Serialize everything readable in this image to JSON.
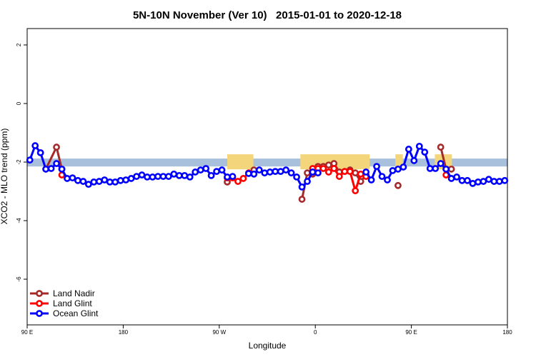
{
  "chart_data": {
    "type": "line",
    "title": "5N-10N November (Ver 10)   2015-01-01 to 2020-12-18",
    "x_label": "Longitude",
    "y_label": "XCO2 - MLO trend (ppm)",
    "xlim": [
      90,
      540
    ],
    "ylim": [
      -7.56,
      2.56
    ],
    "xticks": [
      {
        "value": 90,
        "label": "90 E"
      },
      180,
      {
        "value": 270,
        "label": "90 W"
      },
      {
        "value": 360,
        "label": "0"
      },
      {
        "value": 450,
        "label": "90 E"
      },
      {
        "value": 540,
        "label": "180"
      }
    ],
    "yticks": [
      -6,
      -4,
      -2,
      0,
      2
    ],
    "legend": "bottomleft",
    "band": [
      -2.15,
      -1.88
    ],
    "band_color": "#a9c0dd",
    "land_spans": [
      [
        277.5,
        302
      ],
      [
        346,
        411
      ],
      [
        435,
        442
      ],
      [
        472,
        488
      ]
    ],
    "land_color": "#f3d67c",
    "series": [
      {
        "name": "Land Nadir",
        "color": "#a52a2a",
        "x": [
          107.5,
          117.5,
          122.5,
          127.5,
          277.5,
          282.5,
          302.5,
          307.5,
          347.5,
          352.5,
          357.5,
          362.5,
          367.5,
          372.5,
          377.5,
          382.5,
          387.5,
          392.5,
          397.5,
          402.5,
          407.5,
          412.5,
          437.5,
          442.5,
          477.5,
          482.5,
          487.5
        ],
        "values": [
          -2.24,
          -1.49,
          -2.24,
          null,
          -2.68,
          null,
          -2.27,
          null,
          -3.27,
          -2.37,
          -2.41,
          -2.15,
          -2.15,
          -2.1,
          -2.05,
          -2.34,
          -2.32,
          -2.27,
          -2.37,
          -2.66,
          -2.44,
          null,
          -2.8,
          null,
          -1.49,
          -2.24,
          -2.24
        ]
      },
      {
        "name": "Land Glint",
        "color": "#ff0000",
        "x": [
          122.5,
          127.5,
          277.5,
          282.5,
          287.5,
          292.5,
          297.5,
          302.5,
          357.5,
          362.5,
          367.5,
          372.5,
          377.5,
          382.5,
          387.5,
          392.5,
          397.5,
          402.5,
          407.5,
          412.5,
          482.5
        ],
        "values": [
          -2.44,
          null,
          -2.54,
          -2.54,
          -2.66,
          -2.56,
          -2.37,
          null,
          -2.22,
          -2.22,
          -2.22,
          -2.34,
          -2.22,
          -2.49,
          -2.32,
          -2.32,
          -2.98,
          -2.41,
          -2.49,
          null,
          -2.44
        ]
      },
      {
        "name": "Ocean Glint",
        "color": "#0000ff",
        "x": [
          92.5,
          97.5,
          102.5,
          107.5,
          112.5,
          117.5,
          122.5,
          127.5,
          132.5,
          137.5,
          142.5,
          147.5,
          152.5,
          157.5,
          162.5,
          167.5,
          172.5,
          177.5,
          182.5,
          187.5,
          192.5,
          197.5,
          202.5,
          207.5,
          212.5,
          217.5,
          222.5,
          227.5,
          232.5,
          237.5,
          242.5,
          247.5,
          252.5,
          257.5,
          262.5,
          267.5,
          272.5,
          277.5,
          282.5,
          287.5,
          297.5,
          302.5,
          307.5,
          312.5,
          317.5,
          322.5,
          327.5,
          332.5,
          337.5,
          342.5,
          347.5,
          352.5,
          357.5,
          362.5,
          382.5,
          407.5,
          412.5,
          417.5,
          422.5,
          427.5,
          432.5,
          437.5,
          442.5,
          447.5,
          452.5,
          457.5,
          462.5,
          467.5,
          472.5,
          477.5,
          482.5,
          487.5,
          492.5,
          497.5,
          502.5,
          507.5,
          512.5,
          517.5,
          522.5,
          527.5,
          532.5,
          537.5
        ],
        "values": [
          -1.93,
          -1.44,
          -1.68,
          -2.24,
          -2.22,
          -2.05,
          -2.24,
          -2.56,
          -2.54,
          -2.63,
          -2.66,
          -2.76,
          -2.68,
          -2.66,
          -2.61,
          -2.68,
          -2.68,
          -2.63,
          -2.61,
          -2.56,
          -2.49,
          -2.44,
          -2.51,
          -2.51,
          -2.49,
          -2.49,
          -2.49,
          -2.41,
          -2.46,
          -2.46,
          -2.51,
          -2.34,
          -2.27,
          -2.22,
          -2.46,
          -2.32,
          -2.27,
          -2.51,
          -2.49,
          null,
          -2.39,
          -2.41,
          -2.27,
          -2.37,
          -2.34,
          -2.32,
          -2.32,
          -2.27,
          -2.37,
          -2.51,
          -2.85,
          -2.66,
          -2.34,
          -2.37,
          null,
          -2.34,
          -2.61,
          -2.15,
          -2.49,
          -2.61,
          -2.29,
          -2.24,
          -2.17,
          -1.56,
          -1.95,
          -1.46,
          -1.66,
          -2.22,
          -2.22,
          -2.05,
          -2.24,
          -2.56,
          -2.51,
          -2.63,
          -2.63,
          -2.73,
          -2.68,
          -2.66,
          -2.59,
          -2.66,
          -2.66,
          -2.63
        ]
      }
    ]
  }
}
